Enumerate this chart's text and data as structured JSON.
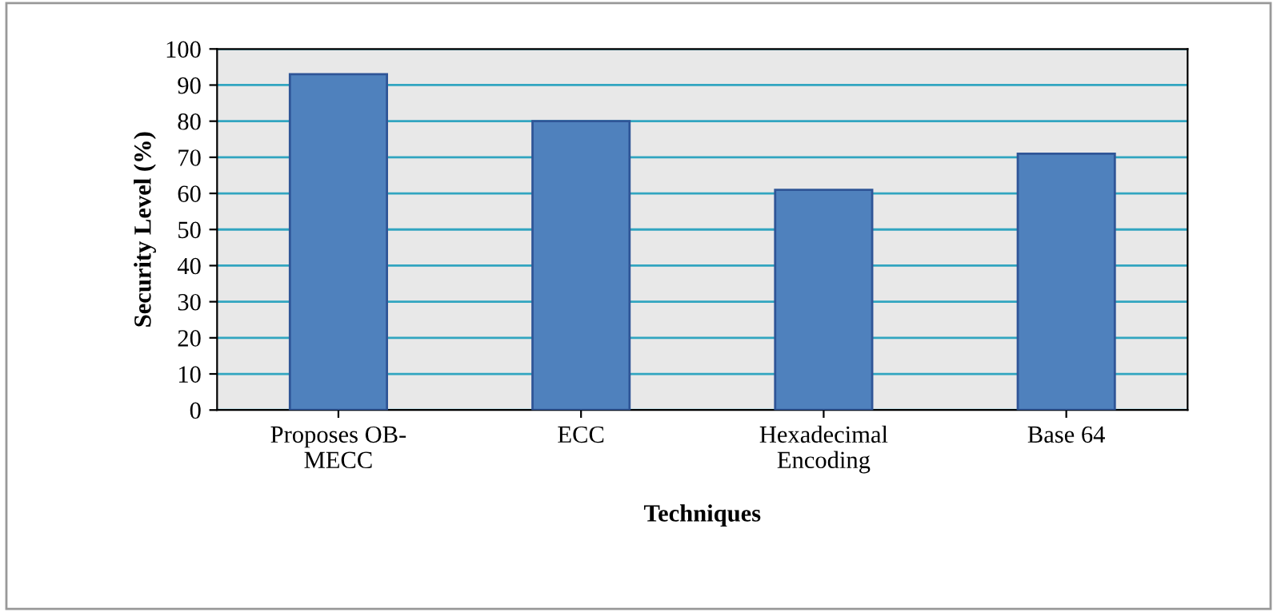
{
  "chart_data": {
    "type": "bar",
    "categories": [
      "Proposes OB-\nMECC",
      "ECC",
      "Hexadecimal\nEncoding",
      "Base 64"
    ],
    "values": [
      93,
      80,
      61,
      71
    ],
    "color": "#4f81bd",
    "xlabel": "Techniques",
    "ylabel": "Security Level (%)",
    "ylim": [
      0,
      100
    ],
    "yticks": [
      0,
      10,
      20,
      30,
      40,
      50,
      60,
      70,
      80,
      90,
      100
    ],
    "grid": "y"
  }
}
